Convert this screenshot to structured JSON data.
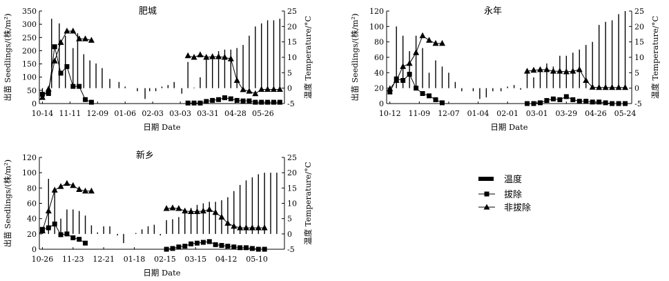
{
  "legend": {
    "temperature": "温度",
    "removal": "拔除",
    "non_removal": "非拔除"
  },
  "chart_data": [
    {
      "type": "bar+line",
      "title": "肥城",
      "xlabel": "日期 Date",
      "ylabel": "出苗 Seedlings/(株/m²)",
      "y2label": "温度 Temperature/°C",
      "ylim": [
        0,
        350
      ],
      "yticks": [
        0,
        50,
        100,
        150,
        200,
        250,
        300,
        350
      ],
      "y2lim": [
        -5,
        25
      ],
      "y2ticks": [
        -5,
        0,
        5,
        10,
        15,
        20,
        25
      ],
      "x_tick_labels": [
        "10-14",
        "11-11",
        "12-09",
        "01-06",
        "02-03",
        "03-03",
        "03-31",
        "04-28",
        "05-26"
      ],
      "temperature_bars": [
        [
          0.2,
          -1.5
        ],
        [
          0.8,
          22.5
        ],
        [
          1.3,
          21
        ],
        [
          1.7,
          17
        ],
        [
          2.2,
          13
        ],
        [
          2.5,
          17.8
        ],
        [
          2.9,
          11
        ],
        [
          3.3,
          9
        ],
        [
          3.7,
          8
        ],
        [
          4.1,
          6.5
        ],
        [
          4.6,
          3
        ],
        [
          5.2,
          2
        ],
        [
          5.6,
          0.5
        ],
        [
          6.4,
          -1
        ],
        [
          6.9,
          -3.5
        ],
        [
          7.2,
          -1
        ],
        [
          7.6,
          -1
        ],
        [
          8.0,
          0.5
        ],
        [
          8.4,
          1
        ],
        [
          8.8,
          2
        ],
        [
          9.3,
          -1.8
        ],
        [
          9.7,
          8.5
        ],
        [
          10.1,
          0.2
        ],
        [
          10.5,
          3.5
        ],
        [
          10.9,
          10.5
        ],
        [
          11.3,
          10.5
        ],
        [
          11.7,
          12
        ],
        [
          12.1,
          12.5
        ],
        [
          12.5,
          12.5
        ],
        [
          12.9,
          13
        ],
        [
          13.3,
          14
        ],
        [
          13.7,
          17
        ],
        [
          14.1,
          20
        ],
        [
          14.5,
          21
        ],
        [
          14.9,
          22
        ],
        [
          15.3,
          22
        ],
        [
          15.7,
          22.5
        ]
      ],
      "series": [
        {
          "name": "拔除",
          "marker": "square",
          "points": [
            [
              0.2,
              35
            ],
            [
              0.6,
              38
            ],
            [
              1.0,
              215
            ],
            [
              1.4,
              115
            ],
            [
              1.8,
              140
            ],
            [
              2.2,
              65
            ],
            [
              2.6,
              65
            ],
            [
              3.0,
              15
            ],
            [
              3.4,
              5
            ],
            [
              9.7,
              2
            ],
            [
              10.1,
              2
            ],
            [
              10.5,
              2
            ],
            [
              10.9,
              8
            ],
            [
              11.3,
              12
            ],
            [
              11.7,
              15
            ],
            [
              12.1,
              22
            ],
            [
              12.5,
              18
            ],
            [
              12.9,
              12
            ],
            [
              13.3,
              10
            ],
            [
              13.7,
              10
            ],
            [
              14.1,
              5
            ],
            [
              14.5,
              5
            ],
            [
              14.9,
              5
            ],
            [
              15.3,
              5
            ],
            [
              15.7,
              5
            ]
          ]
        },
        {
          "name": "非拔除",
          "marker": "triangle",
          "points": [
            [
              0.2,
              -3
            ],
            [
              0.6,
              -0.3
            ],
            [
              1.0,
              8.8
            ],
            [
              1.4,
              14.8
            ],
            [
              1.8,
              18.5
            ],
            [
              2.2,
              18.5
            ],
            [
              2.6,
              16
            ],
            [
              3.0,
              16
            ],
            [
              3.4,
              15.5
            ],
            [
              9.7,
              10.5
            ],
            [
              10.1,
              10
            ],
            [
              10.5,
              10.8
            ],
            [
              10.9,
              10
            ],
            [
              11.3,
              10.2
            ],
            [
              11.7,
              10.2
            ],
            [
              12.1,
              10
            ],
            [
              12.5,
              9.5
            ],
            [
              12.9,
              2.5
            ],
            [
              13.3,
              -0.5
            ],
            [
              13.7,
              -1
            ],
            [
              14.1,
              -1.8
            ],
            [
              14.5,
              -0.4
            ],
            [
              14.9,
              -0.4
            ],
            [
              15.3,
              -0.4
            ],
            [
              15.7,
              -0.4
            ]
          ]
        }
      ]
    },
    {
      "type": "bar+line",
      "title": "永年",
      "xlabel": "日期 Date",
      "ylabel": "出苗 Seedlings/(株/m²)",
      "y2label": "温度 Temperature/°C",
      "ylim": [
        0,
        120
      ],
      "yticks": [
        0,
        20,
        40,
        60,
        80,
        100,
        120
      ],
      "y2lim": [
        -5,
        25
      ],
      "y2ticks": [
        -5,
        0,
        5,
        10,
        15,
        20,
        25
      ],
      "x_tick_labels": [
        "10-12",
        "11-09",
        "12-07",
        "01-04",
        "02-01",
        "03-01",
        "03-29",
        "04-26",
        "05-24"
      ],
      "temperature_bars": [
        [
          0.2,
          -1
        ],
        [
          0.6,
          20
        ],
        [
          1.0,
          17
        ],
        [
          1.4,
          12
        ],
        [
          1.8,
          17
        ],
        [
          2.2,
          13
        ],
        [
          2.6,
          5
        ],
        [
          3.0,
          9
        ],
        [
          3.4,
          7
        ],
        [
          3.8,
          5
        ],
        [
          4.2,
          2
        ],
        [
          4.6,
          -1
        ],
        [
          5.3,
          -1
        ],
        [
          5.7,
          -3.5
        ],
        [
          6.1,
          -3
        ],
        [
          6.5,
          -1
        ],
        [
          7.0,
          -1
        ],
        [
          7.4,
          0.5
        ],
        [
          7.8,
          1
        ],
        [
          8.2,
          -0.5
        ],
        [
          8.6,
          5.5
        ],
        [
          9.0,
          3.5
        ],
        [
          9.4,
          6
        ],
        [
          9.8,
          8
        ],
        [
          10.2,
          7
        ],
        [
          10.6,
          10.5
        ],
        [
          11.0,
          10.5
        ],
        [
          11.4,
          11.5
        ],
        [
          11.8,
          12.5
        ],
        [
          12.2,
          14
        ],
        [
          12.6,
          15
        ],
        [
          13.0,
          20.5
        ],
        [
          13.4,
          21.5
        ],
        [
          13.8,
          22
        ],
        [
          14.2,
          24
        ],
        [
          14.6,
          25
        ]
      ],
      "series": [
        {
          "name": "拔除",
          "marker": "square",
          "points": [
            [
              0.2,
              15
            ],
            [
              0.6,
              32
            ],
            [
              1.0,
              30
            ],
            [
              1.4,
              38
            ],
            [
              1.8,
              20
            ],
            [
              2.2,
              13
            ],
            [
              2.6,
              10
            ],
            [
              3.0,
              5
            ],
            [
              3.4,
              1
            ],
            [
              8.6,
              0
            ],
            [
              9.0,
              0
            ],
            [
              9.4,
              1
            ],
            [
              9.8,
              4
            ],
            [
              10.2,
              6
            ],
            [
              10.6,
              5
            ],
            [
              11.0,
              9
            ],
            [
              11.4,
              5
            ],
            [
              11.8,
              3
            ],
            [
              12.2,
              3
            ],
            [
              12.6,
              2
            ],
            [
              13.0,
              2
            ],
            [
              13.4,
              1
            ],
            [
              13.8,
              0
            ],
            [
              14.2,
              0
            ],
            [
              14.6,
              0
            ]
          ]
        },
        {
          "name": "非拔除",
          "marker": "triangle",
          "points": [
            [
              0.2,
              -0.2
            ],
            [
              0.6,
              2.5
            ],
            [
              1.0,
              7
            ],
            [
              1.4,
              8
            ],
            [
              1.8,
              11.5
            ],
            [
              2.2,
              17
            ],
            [
              2.6,
              15.5
            ],
            [
              3.0,
              14.5
            ],
            [
              3.4,
              14.5
            ],
            [
              8.6,
              5.5
            ],
            [
              9.0,
              5.8
            ],
            [
              9.4,
              6
            ],
            [
              9.8,
              6
            ],
            [
              10.2,
              5.5
            ],
            [
              10.6,
              5.5
            ],
            [
              11.0,
              5.3
            ],
            [
              11.4,
              5.5
            ],
            [
              11.8,
              6
            ],
            [
              12.2,
              2.5
            ],
            [
              12.6,
              0.3
            ],
            [
              13.0,
              0.2
            ],
            [
              13.4,
              0.2
            ],
            [
              13.8,
              0.2
            ],
            [
              14.2,
              0.2
            ],
            [
              14.6,
              0.2
            ]
          ]
        }
      ]
    },
    {
      "type": "bar+line",
      "title": "新乡",
      "xlabel": "日期 Date",
      "ylabel": "出苗 Seedlings/(株/m²)",
      "y2label": "温度 Temperature/°C",
      "ylim": [
        0,
        120
      ],
      "yticks": [
        0,
        20,
        40,
        60,
        80,
        100,
        120
      ],
      "y2lim": [
        -5,
        25
      ],
      "y2ticks": [
        -5,
        0,
        5,
        10,
        15,
        20,
        25
      ],
      "x_tick_labels": [
        "10-26",
        "11-23",
        "12-21",
        "01-18",
        "02-15",
        "03-15",
        "04-12",
        "05-10"
      ],
      "temperature_bars": [
        [
          0.2,
          2
        ],
        [
          0.6,
          18
        ],
        [
          1.0,
          15
        ],
        [
          1.4,
          5
        ],
        [
          1.8,
          8
        ],
        [
          2.2,
          8
        ],
        [
          2.6,
          7.5
        ],
        [
          3.0,
          6
        ],
        [
          3.4,
          2.8
        ],
        [
          3.8,
          0.5
        ],
        [
          4.2,
          2.5
        ],
        [
          4.6,
          2.5
        ],
        [
          5.1,
          -0.5
        ],
        [
          5.5,
          -3
        ],
        [
          5.9,
          0
        ],
        [
          6.3,
          0.3
        ],
        [
          6.7,
          1.5
        ],
        [
          7.1,
          2.5
        ],
        [
          7.5,
          3
        ],
        [
          7.9,
          -0.5
        ],
        [
          8.3,
          4.5
        ],
        [
          8.7,
          4.8
        ],
        [
          9.1,
          5.5
        ],
        [
          9.5,
          8
        ],
        [
          9.9,
          8.5
        ],
        [
          10.3,
          9.5
        ],
        [
          10.7,
          10
        ],
        [
          11.1,
          10.5
        ],
        [
          11.5,
          10.5
        ],
        [
          11.9,
          11
        ],
        [
          12.3,
          12
        ],
        [
          12.7,
          14
        ],
        [
          13.1,
          16
        ],
        [
          13.5,
          17.5
        ],
        [
          13.9,
          18.5
        ],
        [
          14.3,
          19.5
        ],
        [
          14.7,
          20
        ],
        [
          15.1,
          20
        ],
        [
          15.5,
          20
        ]
      ],
      "series": [
        {
          "name": "拔除",
          "marker": "square",
          "points": [
            [
              0.2,
              26
            ],
            [
              0.6,
              28
            ],
            [
              1.0,
              33
            ],
            [
              1.4,
              19
            ],
            [
              1.8,
              20
            ],
            [
              2.2,
              15
            ],
            [
              2.6,
              13
            ],
            [
              3.0,
              8
            ],
            [
              8.3,
              0
            ],
            [
              8.7,
              1
            ],
            [
              9.1,
              3
            ],
            [
              9.5,
              4
            ],
            [
              9.9,
              7
            ],
            [
              10.3,
              8
            ],
            [
              10.7,
              9
            ],
            [
              11.1,
              10
            ],
            [
              11.5,
              6
            ],
            [
              11.9,
              5
            ],
            [
              12.3,
              4
            ],
            [
              12.7,
              3
            ],
            [
              13.1,
              2
            ],
            [
              13.5,
              2
            ],
            [
              13.9,
              1
            ],
            [
              14.3,
              0
            ],
            [
              14.7,
              0
            ]
          ]
        },
        {
          "name": "非拔除",
          "marker": "triangle",
          "points": [
            [
              0.2,
              1
            ],
            [
              0.6,
              7.5
            ],
            [
              1.0,
              14.3
            ],
            [
              1.4,
              15.5
            ],
            [
              1.8,
              16.5
            ],
            [
              2.2,
              15.8
            ],
            [
              2.6,
              14.5
            ],
            [
              3.0,
              14
            ],
            [
              3.4,
              14
            ],
            [
              8.3,
              8.3
            ],
            [
              8.7,
              8.5
            ],
            [
              9.1,
              8.3
            ],
            [
              9.5,
              7.5
            ],
            [
              9.9,
              7.3
            ],
            [
              10.3,
              7.3
            ],
            [
              10.7,
              7.5
            ],
            [
              11.1,
              8
            ],
            [
              11.5,
              7
            ],
            [
              11.9,
              5.5
            ],
            [
              12.3,
              3.5
            ],
            [
              12.7,
              2.5
            ],
            [
              13.1,
              2
            ],
            [
              13.5,
              2
            ],
            [
              13.9,
              2
            ],
            [
              14.3,
              2
            ],
            [
              14.7,
              2
            ]
          ]
        }
      ]
    }
  ]
}
